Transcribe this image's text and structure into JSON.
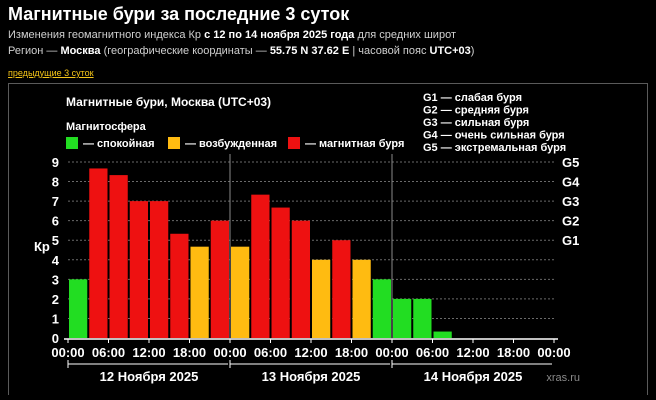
{
  "page": {
    "title": "Магнитные бури за последние 3 суток",
    "subtitle1_prefix": "Изменения геомагнитного индекса Кр ",
    "subtitle1_dates": "с 12 по 14 ноября 2025 года",
    "subtitle1_suffix": " для средних широт",
    "subtitle2_prefix": "Регион — ",
    "subtitle2_region": "Москва",
    "subtitle2_mid": " (географические координаты — ",
    "subtitle2_coords": "55.75 N 37.62 E",
    "subtitle2_mid2": " | часовой пояс ",
    "subtitle2_tz": "UTC+03",
    "subtitle2_end": ")",
    "prev_link": "предыдущие 3 суток"
  },
  "chart_data": {
    "type": "bar",
    "title": "Магнитные бури, Москва (UTC+03)",
    "legend_title": "Магнитосфера",
    "legend": [
      {
        "label": "— спокойная",
        "color": "#22dd22"
      },
      {
        "label": "— возбужденная",
        "color": "#ffbb11"
      },
      {
        "label": "— магнитная буря",
        "color": "#ee1111"
      }
    ],
    "storm_legend": [
      "G1 — слабая буря",
      "G2 — средняя буря",
      "G3 — сильная буря",
      "G4 — очень сильная буря",
      "G5 — экстремальная буря"
    ],
    "ylabel": "Кр",
    "ylim": [
      0,
      9
    ],
    "yticks": [
      "0",
      "1",
      "2",
      "3",
      "4",
      "5",
      "6",
      "7",
      "8",
      "9"
    ],
    "g_levels": [
      {
        "label": "G1",
        "value": 5
      },
      {
        "label": "G2",
        "value": 6
      },
      {
        "label": "G3",
        "value": 7
      },
      {
        "label": "G4",
        "value": 8
      },
      {
        "label": "G5",
        "value": 9
      }
    ],
    "xtick_labels": [
      "00:00",
      "06:00",
      "12:00",
      "18:00",
      "00:00",
      "06:00",
      "12:00",
      "18:00",
      "00:00",
      "06:00",
      "12:00",
      "18:00",
      "00:00"
    ],
    "days": [
      "12 Ноября 2025",
      "13 Ноября 2025",
      "14 Ноября 2025"
    ],
    "intervals_per_day": 8,
    "values": [
      3.0,
      8.67,
      8.33,
      7.0,
      7.0,
      5.33,
      4.67,
      6.0,
      4.67,
      7.33,
      6.67,
      6.0,
      4.0,
      5.0,
      4.0,
      3.0,
      2.0,
      2.0,
      0.33,
      null,
      null,
      null,
      null,
      null
    ],
    "colors": {
      "quiet": "#22dd22",
      "active": "#ffbb11",
      "storm": "#ee1111"
    },
    "watermark": "xras.ru"
  }
}
